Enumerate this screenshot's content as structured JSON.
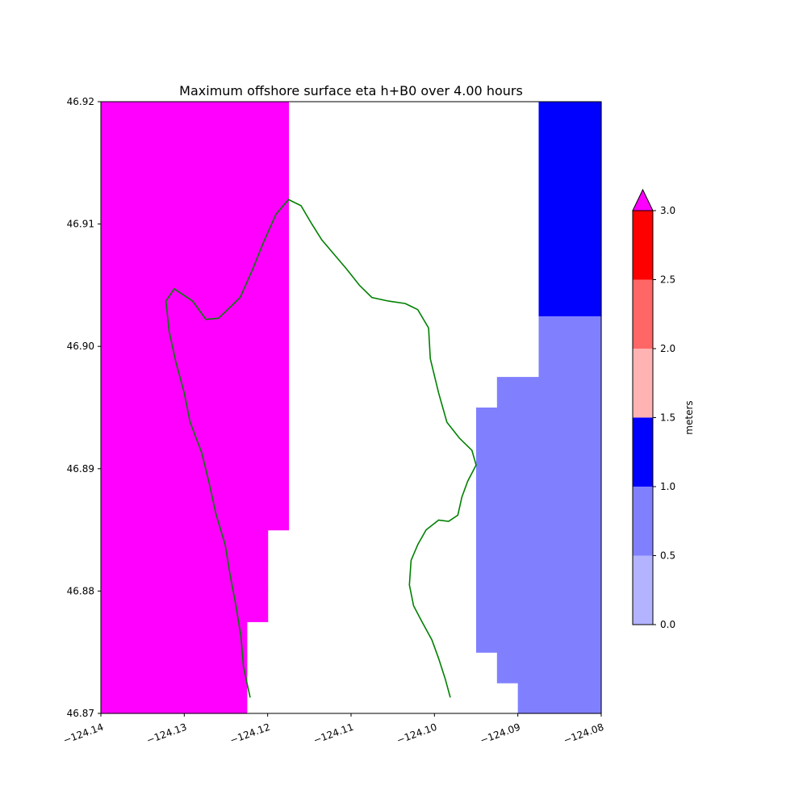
{
  "chart_data": {
    "type": "heatmap",
    "title": "Maximum offshore surface eta h+B0 over 4.00 hours",
    "xlabel": "",
    "ylabel": "",
    "xlim": [
      -124.14,
      -124.08
    ],
    "ylim": [
      46.87,
      46.92
    ],
    "x_ticks": [
      -124.14,
      -124.13,
      -124.12,
      -124.11,
      -124.1,
      -124.09,
      -124.08
    ],
    "x_tick_labels": [
      "−124.14",
      "−124.13",
      "−124.12",
      "−124.11",
      "−124.10",
      "−124.09",
      "−124.08"
    ],
    "y_ticks": [
      46.87,
      46.88,
      46.89,
      46.9,
      46.91,
      46.92
    ],
    "y_tick_labels": [
      "46.87",
      "46.88",
      "46.89",
      "46.90",
      "46.91",
      "46.92"
    ],
    "grid": [
      "666666600000000000001111",
      "666666600000000000011111",
      "666666600000000000111111",
      "666666660000000000111111",
      "666666660000000000111111",
      "666666660000000000111111",
      "666666666000000000111111",
      "666666666000000000111111",
      "666666666000000000111111",
      "666666666000000000111111",
      "666666666000000000011111",
      "666666666000000000000111",
      "666666666000000000000111",
      "666666666000000000000222",
      "666666666000000000000222",
      "666666666000000000000222",
      "666666666000000000000222",
      "666666666000000000000222",
      "666666666000000000000222",
      "666666666000000000000222"
    ],
    "colorbar": {
      "label": "meters",
      "levels": [
        0.0,
        0.5,
        1.0,
        1.5,
        2.0,
        2.5,
        3.0
      ],
      "tick_labels": [
        "0.0",
        "0.5",
        "1.0",
        "1.5",
        "2.0",
        "2.5",
        "3.0"
      ],
      "colors": [
        "#b3b3ff",
        "#8080ff",
        "#0000ff",
        "#ffb3b3",
        "#ff6666",
        "#ff0000"
      ],
      "over_color": "#ff00ff",
      "extend": "max",
      "placement": "right"
    },
    "grid_info": {
      "x_edges_start": -124.14,
      "y_edges_start": 46.87,
      "cols": 24,
      "rows": 20,
      "cell_codes": "0 white, 1 = 0.5-1.0, 2 = 1.0-1.5, 3 = 1.5-2.0, 4 = 2.0-2.5, 5 = 2.5-3.0, 6 = over 3.0"
    },
    "coastline": [
      [
        -124.1221,
        46.8713
      ],
      [
        -124.1229,
        46.8738
      ],
      [
        -124.1232,
        46.8763
      ],
      [
        -124.1238,
        46.8788
      ],
      [
        -124.1245,
        46.8813
      ],
      [
        -124.1251,
        46.8838
      ],
      [
        -124.1262,
        46.8863
      ],
      [
        -124.127,
        46.8888
      ],
      [
        -124.1279,
        46.8913
      ],
      [
        -124.1293,
        46.8938
      ],
      [
        -124.13,
        46.8962
      ],
      [
        -124.131,
        46.8987
      ],
      [
        -124.1318,
        46.9012
      ],
      [
        -124.1322,
        46.9037
      ],
      [
        -124.1312,
        46.9047
      ],
      [
        -124.129,
        46.9037
      ],
      [
        -124.1274,
        46.9022
      ],
      [
        -124.1259,
        46.9023
      ],
      [
        -124.1248,
        46.903
      ],
      [
        -124.1233,
        46.904
      ],
      [
        -124.1218,
        46.9063
      ],
      [
        -124.1205,
        46.9085
      ],
      [
        -124.119,
        46.9108
      ],
      [
        -124.1175,
        46.912
      ],
      [
        -124.116,
        46.9115
      ],
      [
        -124.1147,
        46.91
      ],
      [
        -124.1135,
        46.9087
      ],
      [
        -124.112,
        46.9075
      ],
      [
        -124.1105,
        46.9063
      ],
      [
        -124.109,
        46.905
      ],
      [
        -124.1075,
        46.904
      ],
      [
        -124.1055,
        46.9037
      ],
      [
        -124.1035,
        46.9035
      ],
      [
        -124.102,
        46.903
      ],
      [
        -124.1007,
        46.9015
      ],
      [
        -124.1005,
        46.899
      ],
      [
        -124.0995,
        46.8962
      ],
      [
        -124.0985,
        46.8938
      ],
      [
        -124.097,
        46.8925
      ],
      [
        -124.0955,
        46.8915
      ],
      [
        -124.095,
        46.8903
      ],
      [
        -124.096,
        46.889
      ],
      [
        -124.0967,
        46.8877
      ],
      [
        -124.0972,
        46.8862
      ],
      [
        -124.0983,
        46.8857
      ],
      [
        -124.0995,
        46.8858
      ],
      [
        -124.101,
        46.885
      ],
      [
        -124.102,
        46.8838
      ],
      [
        -124.1028,
        46.8825
      ],
      [
        -124.103,
        46.8805
      ],
      [
        -124.1025,
        46.8788
      ],
      [
        -124.1015,
        46.8775
      ],
      [
        -124.1003,
        46.876
      ],
      [
        -124.0995,
        46.8745
      ],
      [
        -124.0987,
        46.8728
      ],
      [
        -124.0981,
        46.8713
      ]
    ]
  }
}
